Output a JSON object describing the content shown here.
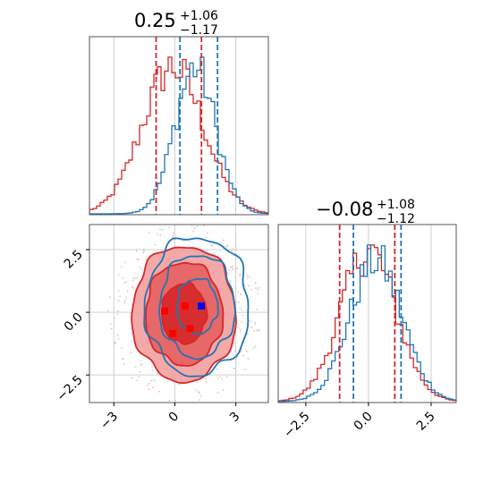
{
  "chart_data": [
    {
      "type": "histogram",
      "panel": "marginal-param-1",
      "title": {
        "value": "0.25",
        "plus": "+1.06",
        "minus": "−1.17"
      },
      "xlim": [
        -4.2,
        4.6
      ],
      "series": [
        {
          "color": "#d62728",
          "center": -0.1,
          "sigma": 1.5
        },
        {
          "color": "#1f77b4",
          "center": 1.0,
          "sigma": 1.0
        }
      ],
      "quantile_lines": [
        {
          "color": "#d62728",
          "x": [
            -0.92,
            1.31
          ]
        },
        {
          "color": "#1f77b4",
          "x": [
            0.25,
            2.1
          ]
        }
      ]
    },
    {
      "type": "contour",
      "panel": "joint-2d",
      "xlim": [
        -4.2,
        4.6
      ],
      "ylim": [
        -3.6,
        3.5
      ],
      "xticks": [
        "−3",
        "0",
        "3"
      ],
      "xtick_values": [
        -3,
        0,
        3
      ],
      "yticks": [
        "2.5",
        "0.0",
        "−2.5"
      ],
      "ytick_values": [
        2.5,
        0.0,
        -2.5
      ],
      "series": [
        {
          "color": "#d62728",
          "filled": true,
          "center": [
            0.45,
            -0.05
          ],
          "radii": [
            [
              1.1,
              1.2
            ],
            [
              1.9,
              2.05
            ],
            [
              2.55,
              2.7
            ]
          ]
        },
        {
          "color": "#1f77b4",
          "filled": false,
          "center": [
            1.1,
            0.25
          ],
          "radii": [
            [
              1.0,
              1.1
            ],
            [
              1.85,
              2.05
            ],
            [
              2.55,
              2.75
            ]
          ]
        }
      ],
      "markers": [
        {
          "x": 1.3,
          "y": 0.25,
          "color": "#0000ff"
        },
        {
          "x": 0.5,
          "y": 0.25,
          "color": "#ff0000"
        },
        {
          "x": -0.5,
          "y": 0.05,
          "color": "#ff0000"
        },
        {
          "x": -0.1,
          "y": -0.85,
          "color": "#ff0000"
        },
        {
          "x": 0.75,
          "y": -0.65,
          "color": "#ff0000"
        }
      ]
    },
    {
      "type": "histogram",
      "panel": "marginal-param-2",
      "title": {
        "value": "−0.08",
        "plus": "+1.08",
        "minus": "−1.12"
      },
      "xlim": [
        -3.6,
        3.5
      ],
      "xticks": [
        "−2.5",
        "0.0",
        "2.5"
      ],
      "xtick_values": [
        -2.5,
        0.0,
        2.5
      ],
      "series": [
        {
          "color": "#d62728",
          "center": 0.0,
          "sigma": 1.1
        },
        {
          "color": "#1f77b4",
          "center": 0.3,
          "sigma": 1.05
        }
      ],
      "quantile_lines": [
        {
          "color": "#d62728",
          "x": [
            -1.15,
            1.05
          ]
        },
        {
          "color": "#1f77b4",
          "x": [
            -0.6,
            1.3
          ]
        }
      ]
    }
  ]
}
